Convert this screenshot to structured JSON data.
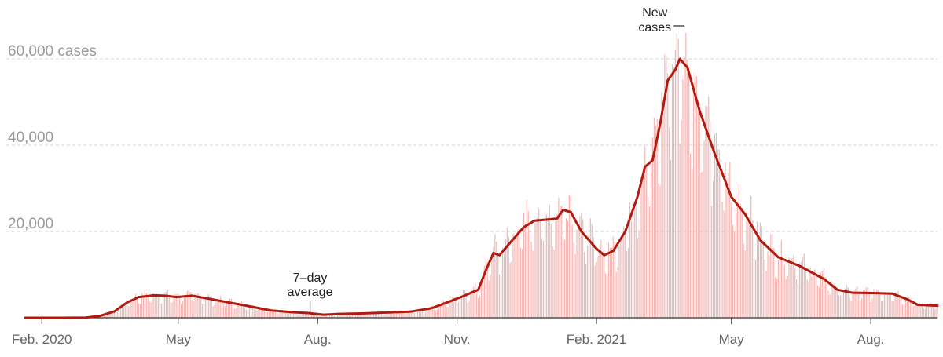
{
  "chart_data": {
    "type": "bar",
    "title": "",
    "x_range": [
      "2020-01-21",
      "2021-09-14"
    ],
    "ylim": [
      0,
      65000
    ],
    "grid": true,
    "y_ticks": [
      {
        "value": 20000,
        "label": "20,000"
      },
      {
        "value": 40000,
        "label": "40,000"
      },
      {
        "value": 60000,
        "label": "60,000 cases"
      }
    ],
    "x_ticks": [
      {
        "date": "2020-02-01",
        "label": "Feb. 2020"
      },
      {
        "date": "2020-05-01",
        "label": "May"
      },
      {
        "date": "2020-08-01",
        "label": "Aug."
      },
      {
        "date": "2020-11-01",
        "label": "Nov."
      },
      {
        "date": "2021-02-01",
        "label": "Feb. 2021"
      },
      {
        "date": "2021-05-01",
        "label": "May"
      },
      {
        "date": "2021-08-01",
        "label": "Aug."
      }
    ],
    "series": [
      {
        "name": "New cases",
        "style": "bars",
        "color": "#f0b8b6"
      },
      {
        "name": "7-day average",
        "style": "line",
        "color": "#b3190e",
        "points": [
          [
            "2020-01-21",
            0
          ],
          [
            "2020-02-15",
            0
          ],
          [
            "2020-03-01",
            50
          ],
          [
            "2020-03-10",
            400
          ],
          [
            "2020-03-20",
            1500
          ],
          [
            "2020-03-28",
            3500
          ],
          [
            "2020-04-05",
            4800
          ],
          [
            "2020-04-15",
            5200
          ],
          [
            "2020-04-22",
            5100
          ],
          [
            "2020-04-30",
            4800
          ],
          [
            "2020-05-10",
            5100
          ],
          [
            "2020-05-20",
            4500
          ],
          [
            "2020-06-01",
            3700
          ],
          [
            "2020-06-15",
            2800
          ],
          [
            "2020-07-01",
            1700
          ],
          [
            "2020-07-15",
            1300
          ],
          [
            "2020-07-25",
            1100
          ],
          [
            "2020-08-05",
            700
          ],
          [
            "2020-08-15",
            900
          ],
          [
            "2020-08-30",
            1000
          ],
          [
            "2020-09-15",
            1200
          ],
          [
            "2020-10-01",
            1400
          ],
          [
            "2020-10-15",
            2200
          ],
          [
            "2020-10-25",
            3500
          ],
          [
            "2020-11-05",
            5000
          ],
          [
            "2020-11-15",
            6500
          ],
          [
            "2020-11-20",
            11000
          ],
          [
            "2020-11-25",
            15000
          ],
          [
            "2020-11-29",
            14500
          ],
          [
            "2020-12-05",
            17000
          ],
          [
            "2020-12-15",
            21000
          ],
          [
            "2020-12-22",
            22500
          ],
          [
            "2021-01-01",
            22800
          ],
          [
            "2021-01-06",
            23000
          ],
          [
            "2021-01-10",
            25000
          ],
          [
            "2021-01-15",
            24500
          ],
          [
            "2021-01-22",
            20000
          ],
          [
            "2021-02-01",
            16000
          ],
          [
            "2021-02-06",
            14500
          ],
          [
            "2021-02-12",
            15500
          ],
          [
            "2021-02-20",
            20000
          ],
          [
            "2021-02-28",
            28000
          ],
          [
            "2021-03-05",
            35000
          ],
          [
            "2021-03-10",
            36500
          ],
          [
            "2021-03-15",
            45000
          ],
          [
            "2021-03-20",
            55000
          ],
          [
            "2021-03-25",
            57500
          ],
          [
            "2021-03-28",
            60000
          ],
          [
            "2021-04-02",
            58000
          ],
          [
            "2021-04-10",
            48000
          ],
          [
            "2021-04-20",
            38000
          ],
          [
            "2021-05-01",
            28000
          ],
          [
            "2021-05-10",
            24000
          ],
          [
            "2021-05-20",
            18000
          ],
          [
            "2021-06-01",
            14000
          ],
          [
            "2021-06-15",
            12000
          ],
          [
            "2021-07-01",
            9000
          ],
          [
            "2021-07-10",
            6500
          ],
          [
            "2021-07-20",
            5800
          ],
          [
            "2021-08-05",
            5700
          ],
          [
            "2021-08-15",
            5600
          ],
          [
            "2021-08-25",
            4300
          ],
          [
            "2021-09-01",
            3000
          ],
          [
            "2021-09-14",
            2800
          ]
        ]
      }
    ],
    "annotations": [
      {
        "lines": [
          "New",
          "cases"
        ],
        "date": "2021-03-27"
      },
      {
        "lines": [
          "7–day",
          "average"
        ],
        "date": "2020-07-27"
      }
    ]
  }
}
